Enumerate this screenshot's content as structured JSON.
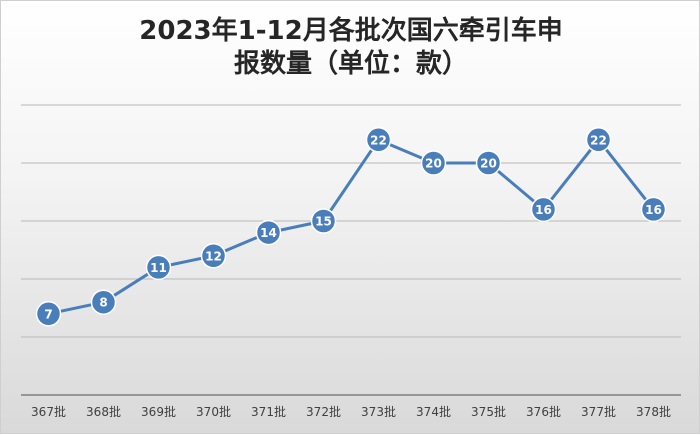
{
  "chart_data": {
    "type": "line",
    "title_line1": "2023年1-12月各批次国六牵引车申",
    "title_line2": "报数量（单位：款）",
    "categories": [
      "367批",
      "368批",
      "369批",
      "370批",
      "371批",
      "372批",
      "373批",
      "374批",
      "375批",
      "376批",
      "377批",
      "378批"
    ],
    "series": [
      {
        "values": [
          7,
          8,
          11,
          12,
          14,
          15,
          22,
          20,
          20,
          16,
          22,
          16
        ]
      }
    ],
    "ylim": [
      0,
      25
    ],
    "grid": true,
    "colors": {
      "line": "#4a7ebb",
      "marker": "#4a7ebb",
      "marker_edge": "#ffffff",
      "grid": "#b8b8b8",
      "axis": "#7f7f7f"
    }
  }
}
